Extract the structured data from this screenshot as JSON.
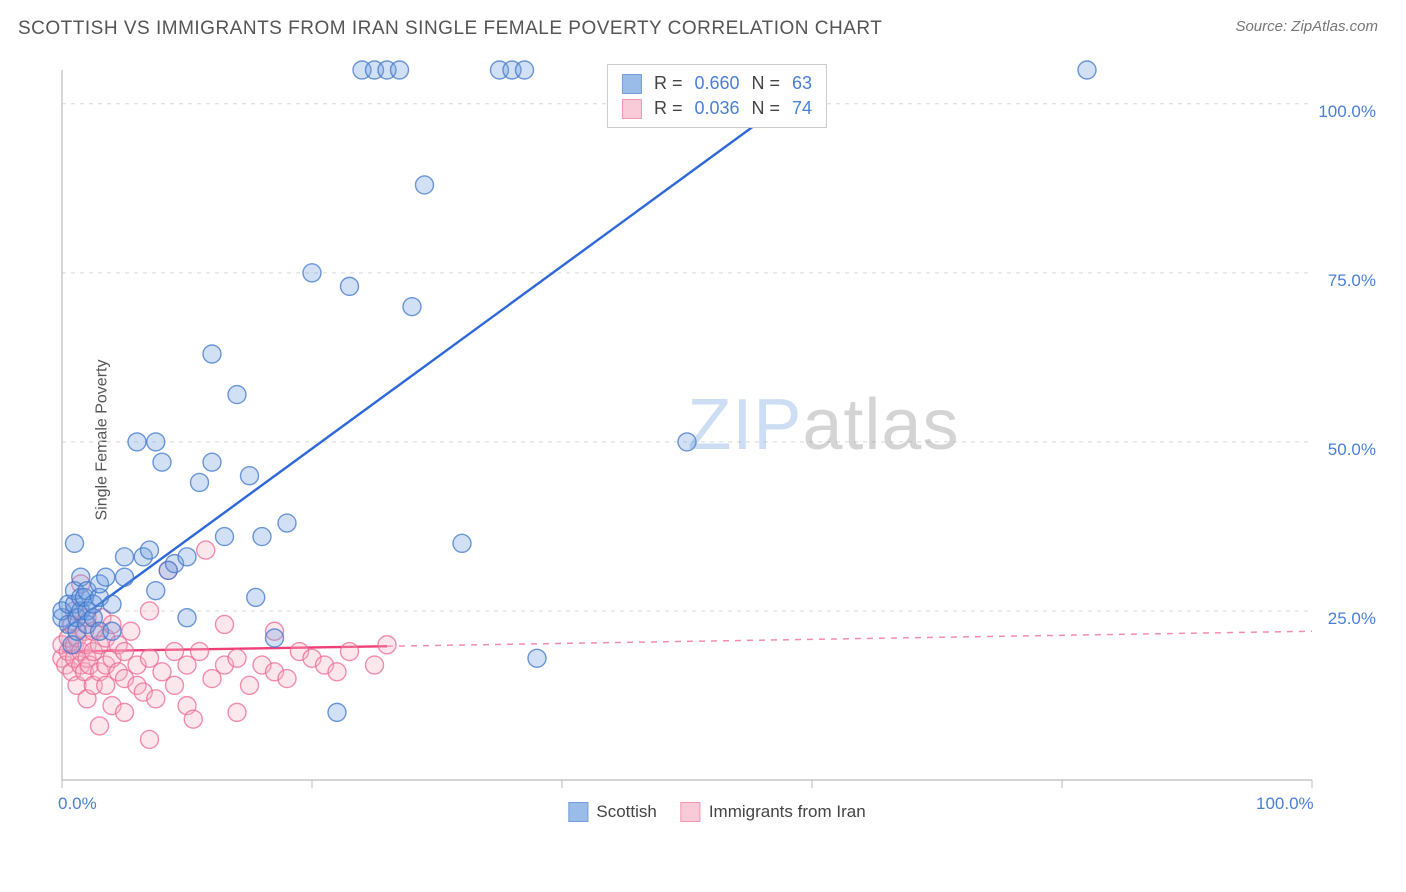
{
  "title": "SCOTTISH VS IMMIGRANTS FROM IRAN SINGLE FEMALE POVERTY CORRELATION CHART",
  "source_label": "Source: ZipAtlas.com",
  "y_axis_label": "Single Female Poverty",
  "watermark": {
    "part1": "ZIP",
    "part2": "atlas"
  },
  "chart": {
    "type": "scatter",
    "xlim": [
      0,
      100
    ],
    "ylim": [
      0,
      105
    ],
    "x_ticks": [
      0,
      20,
      40,
      60,
      80,
      100
    ],
    "x_tick_labels": [
      "0.0%",
      "",
      "",
      "",
      "",
      "100.0%"
    ],
    "y_ticks": [
      25,
      50,
      75,
      100
    ],
    "y_tick_labels": [
      "25.0%",
      "50.0%",
      "75.0%",
      "100.0%"
    ],
    "grid_color": "#d8d8d8",
    "axis_color": "#bbbbbb",
    "background_color": "#ffffff",
    "tick_label_color": "#4a7fd6",
    "tick_label_fontsize": 17,
    "marker_radius": 9,
    "marker_fill_opacity": 0.32,
    "marker_stroke_opacity": 0.75,
    "marker_stroke_width": 1.4,
    "trendline_width": 2.4,
    "trendline_dash_extrapolate": "6 6"
  },
  "series": [
    {
      "name": "Scottish",
      "color": "#6fa0e0",
      "stroke": "#3f77c9",
      "line_color": "#2d68d8",
      "R": "0.660",
      "N": "63",
      "trend": {
        "x1": 0,
        "y1": 22,
        "x2": 60,
        "y2": 103,
        "x_extent": 60
      },
      "points": [
        [
          0,
          24
        ],
        [
          0,
          25
        ],
        [
          0.5,
          23
        ],
        [
          0.5,
          26
        ],
        [
          0.8,
          20
        ],
        [
          1,
          26
        ],
        [
          1,
          28
        ],
        [
          1,
          35
        ],
        [
          1.2,
          22
        ],
        [
          1.2,
          24
        ],
        [
          1.5,
          25
        ],
        [
          1.5,
          27
        ],
        [
          1.5,
          30
        ],
        [
          1.8,
          27
        ],
        [
          2,
          23
        ],
        [
          2,
          25
        ],
        [
          2,
          28
        ],
        [
          2.5,
          24
        ],
        [
          2.5,
          26
        ],
        [
          3,
          22
        ],
        [
          3,
          27
        ],
        [
          3,
          29
        ],
        [
          3.5,
          30
        ],
        [
          4,
          22
        ],
        [
          4,
          26
        ],
        [
          5,
          30
        ],
        [
          5,
          33
        ],
        [
          6,
          50
        ],
        [
          6.5,
          33
        ],
        [
          7,
          34
        ],
        [
          7.5,
          28
        ],
        [
          7.5,
          50
        ],
        [
          8,
          47
        ],
        [
          8.5,
          31
        ],
        [
          9,
          32
        ],
        [
          10,
          24
        ],
        [
          10,
          33
        ],
        [
          11,
          44
        ],
        [
          12,
          47
        ],
        [
          12,
          63
        ],
        [
          13,
          36
        ],
        [
          14,
          57
        ],
        [
          15,
          45
        ],
        [
          15.5,
          27
        ],
        [
          16,
          36
        ],
        [
          17,
          21
        ],
        [
          18,
          38
        ],
        [
          20,
          75
        ],
        [
          22,
          10
        ],
        [
          23,
          73
        ],
        [
          24,
          105
        ],
        [
          25,
          105
        ],
        [
          26,
          105
        ],
        [
          27,
          105
        ],
        [
          28,
          70
        ],
        [
          29,
          88
        ],
        [
          32,
          35
        ],
        [
          35,
          105
        ],
        [
          36,
          105
        ],
        [
          37,
          105
        ],
        [
          38,
          18
        ],
        [
          50,
          50
        ],
        [
          82,
          105
        ]
      ]
    },
    {
      "name": "Immigrants from Iran",
      "color": "#f7b4c8",
      "stroke": "#ec6a94",
      "line_color": "#ef3f77",
      "R": "0.036",
      "N": "74",
      "trend": {
        "x1": 0,
        "y1": 19,
        "x2": 100,
        "y2": 22,
        "x_extent": 26
      },
      "points": [
        [
          0,
          18
        ],
        [
          0,
          20
        ],
        [
          0.3,
          17
        ],
        [
          0.5,
          19
        ],
        [
          0.5,
          21
        ],
        [
          0.8,
          16
        ],
        [
          0.8,
          23
        ],
        [
          1,
          18
        ],
        [
          1,
          20
        ],
        [
          1,
          25
        ],
        [
          1.2,
          14
        ],
        [
          1.2,
          21
        ],
        [
          1.5,
          17
        ],
        [
          1.5,
          19
        ],
        [
          1.5,
          29
        ],
        [
          1.8,
          16
        ],
        [
          1.8,
          22
        ],
        [
          2,
          12
        ],
        [
          2,
          18
        ],
        [
          2,
          20
        ],
        [
          2,
          24
        ],
        [
          2.2,
          17
        ],
        [
          2.5,
          14
        ],
        [
          2.5,
          19
        ],
        [
          2.5,
          22
        ],
        [
          3,
          8
        ],
        [
          3,
          16
        ],
        [
          3,
          20
        ],
        [
          3.2,
          24
        ],
        [
          3.5,
          14
        ],
        [
          3.5,
          17
        ],
        [
          3.5,
          21
        ],
        [
          4,
          11
        ],
        [
          4,
          18
        ],
        [
          4,
          23
        ],
        [
          4.5,
          16
        ],
        [
          4.5,
          20
        ],
        [
          5,
          10
        ],
        [
          5,
          15
        ],
        [
          5,
          19
        ],
        [
          5.5,
          22
        ],
        [
          6,
          14
        ],
        [
          6,
          17
        ],
        [
          6.5,
          13
        ],
        [
          7,
          6
        ],
        [
          7,
          18
        ],
        [
          7,
          25
        ],
        [
          7.5,
          12
        ],
        [
          8,
          16
        ],
        [
          8.5,
          31
        ],
        [
          9,
          14
        ],
        [
          9,
          19
        ],
        [
          10,
          11
        ],
        [
          10,
          17
        ],
        [
          10.5,
          9
        ],
        [
          11,
          19
        ],
        [
          11.5,
          34
        ],
        [
          12,
          15
        ],
        [
          13,
          17
        ],
        [
          13,
          23
        ],
        [
          14,
          10
        ],
        [
          14,
          18
        ],
        [
          15,
          14
        ],
        [
          16,
          17
        ],
        [
          17,
          16
        ],
        [
          17,
          22
        ],
        [
          18,
          15
        ],
        [
          19,
          19
        ],
        [
          20,
          18
        ],
        [
          21,
          17
        ],
        [
          22,
          16
        ],
        [
          23,
          19
        ],
        [
          25,
          17
        ],
        [
          26,
          20
        ]
      ]
    }
  ],
  "legend_top_labels": {
    "R_prefix": "R = ",
    "N_prefix": "N = "
  },
  "legend_bottom": [
    {
      "label": "Scottish",
      "series_idx": 0
    },
    {
      "label": "Immigrants from Iran",
      "series_idx": 1
    }
  ]
}
